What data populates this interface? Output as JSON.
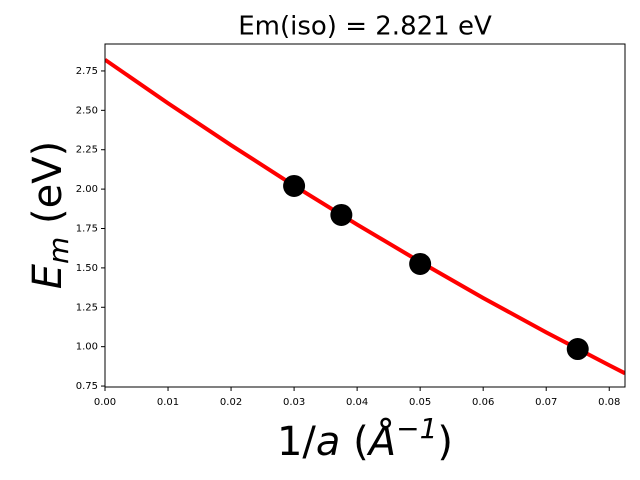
{
  "chart_data": {
    "type": "scatter",
    "title": "Em(iso) =  2.821 eV",
    "ylabel_parts": [
      "E",
      "m",
      " (eV)"
    ],
    "xlabel_parts": [
      "1/",
      "a",
      " (",
      "Å",
      "−1",
      ")"
    ],
    "xlim": [
      0,
      0.0825
    ],
    "ylim": [
      0.744,
      2.921
    ],
    "xticks": [
      {
        "value": 0,
        "label": "0.00"
      },
      {
        "value": 0.01,
        "label": "0.01"
      },
      {
        "value": 0.02,
        "label": "0.02"
      },
      {
        "value": 0.03,
        "label": "0.03"
      },
      {
        "value": 0.04,
        "label": "0.04"
      },
      {
        "value": 0.05,
        "label": "0.05"
      },
      {
        "value": 0.06,
        "label": "0.06"
      },
      {
        "value": 0.07,
        "label": "0.07"
      },
      {
        "value": 0.08,
        "label": "0.08"
      }
    ],
    "yticks": [
      {
        "value": 0.75,
        "label": "0.75"
      },
      {
        "value": 1,
        "label": "1.00"
      },
      {
        "value": 1.25,
        "label": "1.25"
      },
      {
        "value": 1.5,
        "label": "1.50"
      },
      {
        "value": 1.75,
        "label": "1.75"
      },
      {
        "value": 2,
        "label": "2.00"
      },
      {
        "value": 2.25,
        "label": "2.25"
      },
      {
        "value": 2.5,
        "label": "2.50"
      },
      {
        "value": 2.75,
        "label": "2.75"
      }
    ],
    "series": [
      {
        "type": "line",
        "color": "#ff0000",
        "x": [
          0,
          0.01,
          0.02,
          0.03,
          0.04,
          0.05,
          0.06,
          0.07,
          0.08,
          0.0825
        ],
        "values": [
          2.821,
          2.545,
          2.279,
          2.022,
          1.775,
          1.538,
          1.309,
          1.091,
          0.882,
          0.831
        ]
      },
      {
        "type": "scatter",
        "color": "#000000",
        "x": [
          0.03,
          0.0375,
          0.05,
          0.075
        ],
        "values": [
          2.02,
          1.836,
          1.525,
          0.985
        ]
      }
    ]
  }
}
